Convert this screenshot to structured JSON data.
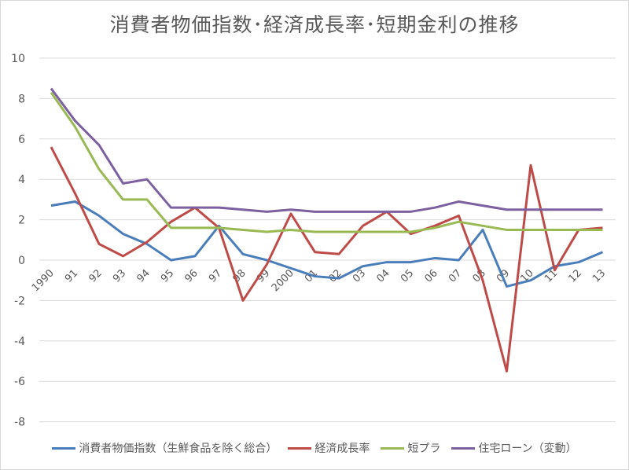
{
  "chart_data": {
    "type": "line",
    "title": "消費者物価指数･経済成長率･短期金利の推移",
    "xlabel": "",
    "ylabel": "",
    "ylim": [
      -8,
      10
    ],
    "yticks": [
      10,
      8,
      6,
      4,
      2,
      0,
      -2,
      -4,
      -6,
      -8
    ],
    "grid": true,
    "legend_position": "bottom",
    "categories": [
      "1990",
      "91",
      "92",
      "93",
      "94",
      "95",
      "96",
      "97",
      "98",
      "99",
      "2000",
      "01",
      "02",
      "03",
      "04",
      "05",
      "06",
      "07",
      "08",
      "09",
      "10",
      "11",
      "12",
      "13"
    ],
    "series": [
      {
        "name": "消費者物価指数（生鮮食品を除く総合）",
        "color": "#4a7ebb",
        "values": [
          2.7,
          2.9,
          2.2,
          1.3,
          0.8,
          0.0,
          0.2,
          1.7,
          0.3,
          0.0,
          -0.4,
          -0.8,
          -0.9,
          -0.3,
          -0.1,
          -0.1,
          0.1,
          0.0,
          1.5,
          -1.3,
          -1.0,
          -0.3,
          -0.1,
          0.4
        ]
      },
      {
        "name": "経済成長率",
        "color": "#be4b48",
        "values": [
          5.6,
          3.3,
          0.8,
          0.2,
          0.9,
          1.9,
          2.6,
          1.6,
          -2.0,
          -0.2,
          2.3,
          0.4,
          0.3,
          1.7,
          2.4,
          1.3,
          1.7,
          2.2,
          -1.0,
          -5.5,
          4.7,
          -0.5,
          1.5,
          1.6
        ]
      },
      {
        "name": "短プラ",
        "color": "#98b954",
        "values": [
          8.3,
          6.6,
          4.5,
          3.0,
          3.0,
          1.6,
          1.6,
          1.6,
          1.5,
          1.4,
          1.5,
          1.4,
          1.4,
          1.4,
          1.4,
          1.4,
          1.6,
          1.9,
          1.7,
          1.5,
          1.5,
          1.5,
          1.5,
          1.5
        ]
      },
      {
        "name": "住宅ローン（変動）",
        "color": "#7d60a0",
        "values": [
          8.5,
          6.9,
          5.7,
          3.8,
          4.0,
          2.6,
          2.6,
          2.6,
          2.5,
          2.4,
          2.5,
          2.4,
          2.4,
          2.4,
          2.4,
          2.4,
          2.6,
          2.9,
          2.7,
          2.5,
          2.5,
          2.5,
          2.5,
          2.5
        ]
      }
    ]
  },
  "legend": {
    "cpi": "消費者物価指数（生鮮食品を除く総合）",
    "gdp": "経済成長率",
    "prime": "短プラ",
    "mortgage": "住宅ローン（変動）"
  },
  "colors": {
    "cpi": "#4a7ebb",
    "gdp": "#be4b48",
    "prime": "#98b954",
    "mortgage": "#7d60a0",
    "grid": "#d9d9d9",
    "text": "#595959"
  }
}
